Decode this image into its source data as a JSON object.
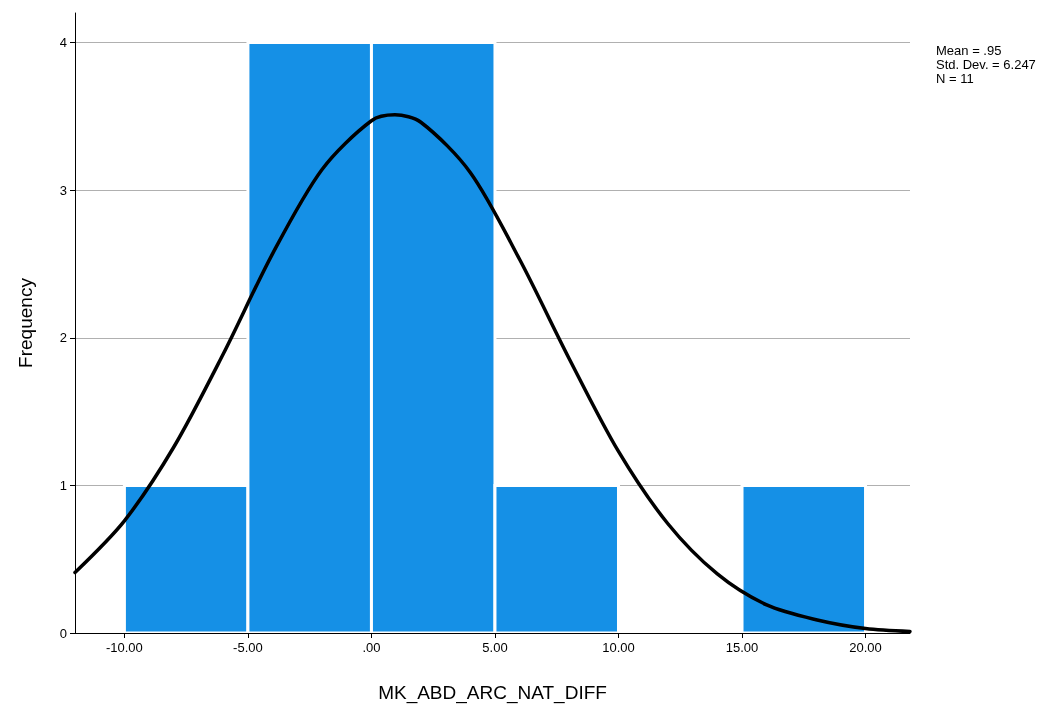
{
  "chart_data": {
    "type": "histogram",
    "xlabel": "MK_ABD_ARC_NAT_DIFF",
    "ylabel": "Frequency",
    "bins": [
      -10,
      -5,
      0,
      5,
      10,
      15,
      20
    ],
    "values": [
      1,
      4,
      4,
      1,
      0,
      1
    ],
    "color": "#1590e6",
    "series": [
      {
        "type": "line",
        "color": "#000000",
        "x": [
          -12,
          -10,
          -8,
          -6,
          -4,
          -2,
          0,
          0.95,
          2,
          4,
          6,
          8,
          10,
          12,
          14,
          16,
          18,
          20,
          21.8
        ],
        "values": [
          0.41,
          0.76,
          1.26,
          1.89,
          2.57,
          3.14,
          3.47,
          3.51,
          3.46,
          3.12,
          2.53,
          1.86,
          1.23,
          0.74,
          0.4,
          0.19,
          0.09,
          0.03,
          0.01
        ]
      }
    ],
    "xlim": [
      -12,
      21.8
    ],
    "xticks": [
      {
        "value": -10,
        "label": "-10.00"
      },
      {
        "value": -5,
        "label": "-5.00"
      },
      {
        "value": 0,
        "label": ".00"
      },
      {
        "value": 5,
        "label": "5.00"
      },
      {
        "value": 10,
        "label": "10.00"
      },
      {
        "value": 15,
        "label": "15.00"
      },
      {
        "value": 20,
        "label": "20.00"
      }
    ],
    "ylim": [
      0,
      4.2
    ],
    "yticks": [
      0,
      1,
      2,
      3,
      4
    ],
    "grid": "y",
    "marker": "none",
    "line_style": "solid",
    "annotations": [
      "Mean = .95",
      "Std. Dev. = 6.247",
      "N = 11"
    ]
  }
}
